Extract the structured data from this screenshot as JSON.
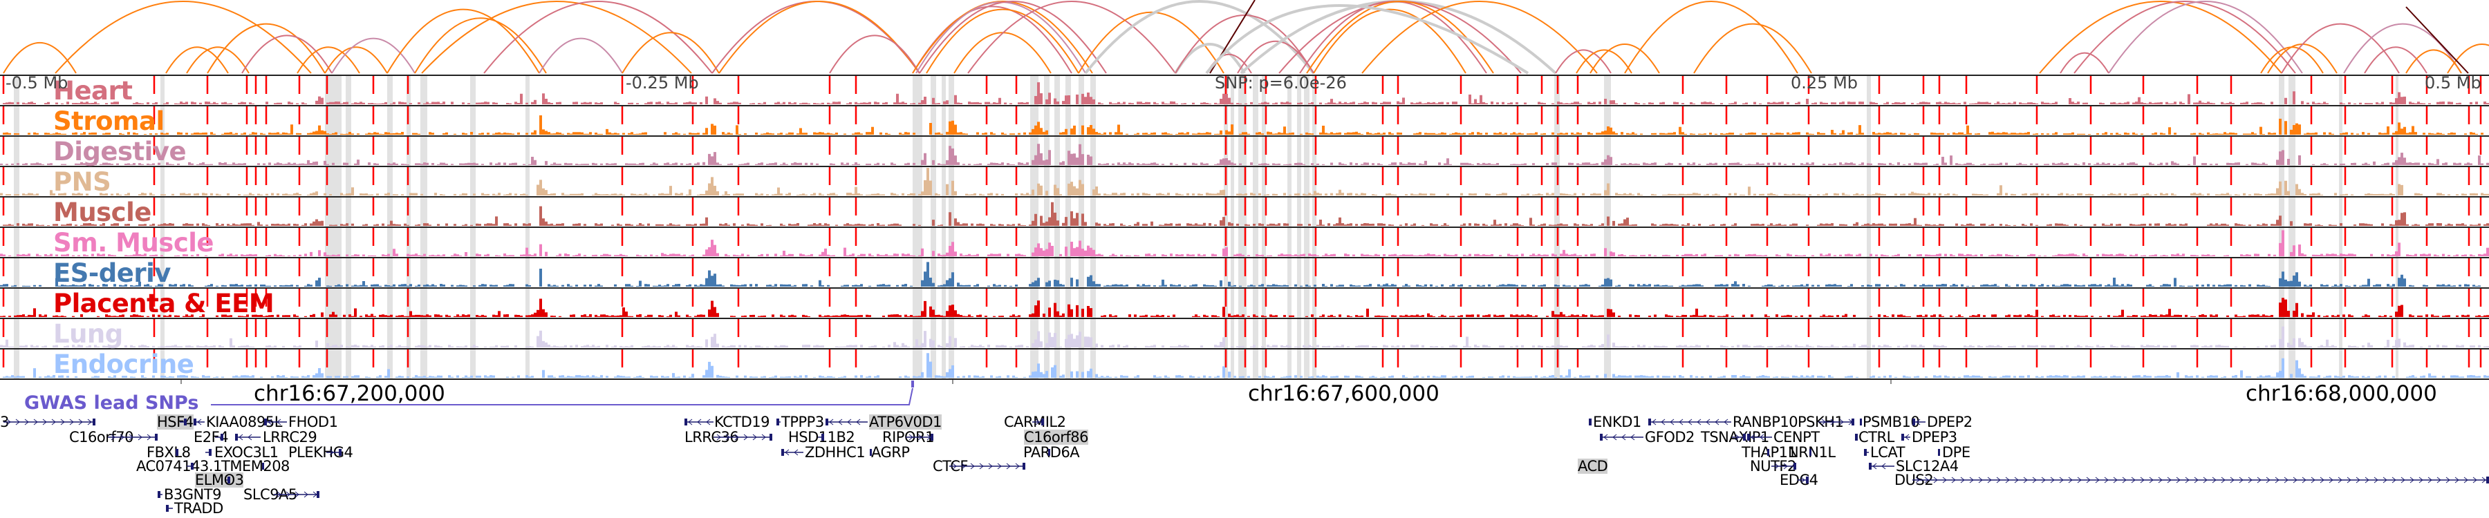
{
  "arcs_track": {
    "colors": {
      "orange": "#ff7f0e",
      "heart": "#d4707f",
      "digestive": "#c98aa8",
      "gray": "#cccccc",
      "dark": "#5a0000"
    }
  },
  "tracks": [
    {
      "label": "Heart",
      "color": "#d4707f"
    },
    {
      "label": "Stromal",
      "color": "#ff7f0e"
    },
    {
      "label": "Digestive",
      "color": "#c98aa8"
    },
    {
      "label": "PNS",
      "color": "#e0b994"
    },
    {
      "label": "Muscle",
      "color": "#c0645c"
    },
    {
      "label": "Sm. Muscle",
      "color": "#ef7fbf"
    },
    {
      "label": "ES-deriv",
      "color": "#4479b0"
    },
    {
      "label": "Placenta & EEM",
      "color": "#e00000"
    },
    {
      "label": "Lung",
      "color": "#d9d2ea"
    },
    {
      "label": "Endocrine",
      "color": "#9ec4ff"
    }
  ],
  "axis": {
    "offsets": [
      "-0.5 Mb",
      "-0.25 Mb",
      "0.25 Mb",
      "0.5 Mb"
    ],
    "snp_label": "SNP: p=6.0e-26",
    "coords": [
      "chr16:67,200,000",
      "chr16:67,600,000",
      "chr16:68,000,000"
    ]
  },
  "gwas": {
    "label": "GWAS lead SNPs",
    "color": "#6a5acd"
  },
  "genes": [
    "3",
    "HSF4",
    "KIAA0895L",
    "FHOD1",
    "KCTD19",
    "TPPP3",
    "ATP6V0D1",
    "CARMIL2",
    "ENKD1",
    "RANBP10",
    "PSKH1",
    "PSMB10",
    "DPEP2",
    "C16orf70",
    "E2F4",
    "LRRC29",
    "LRRC36",
    "HSD11B2",
    "RIPOR1",
    "C16orf86",
    "GFOD2",
    "TSNAXIP1",
    "CENPT",
    "CTRL",
    "DPEP3",
    "FBXL8",
    "EXOC3L1",
    "PLEKHG4",
    "ZDHHC1",
    "AGRP",
    "PARD6A",
    "THAP11",
    "NRN1L",
    "LCAT",
    "DPE",
    "AC074143.1",
    "TMEM208",
    "CTCF",
    "ACD",
    "NUTF2",
    "SLC12A4",
    "ELMO3",
    "EDC4",
    "DUS2",
    "B3GNT9",
    "SLC9A5",
    "TRADD"
  ],
  "highlighted_genes": [
    "HSF4",
    "ATP6V0D1",
    "C16orf86",
    "ACD",
    "ELMO3"
  ],
  "gene_color": "#1a1a6e"
}
